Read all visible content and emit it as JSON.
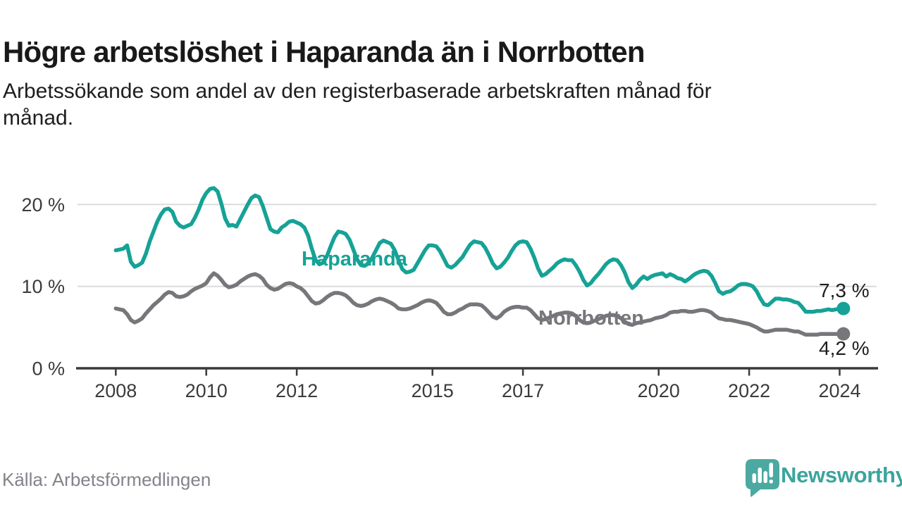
{
  "header": {
    "title": "Högre arbetslöshet i Haparanda än i Norrbotten",
    "subtitle_lines": [
      "Arbetssökande som andel av den registerbaserade arbetskraften månad för",
      "månad."
    ]
  },
  "footer": {
    "source": "Källa: Arbetsförmedlingen",
    "logo_text": "Newsworthy",
    "logo_icon": "speech-bubble-bar-chart-icon"
  },
  "colors": {
    "haparanda": "#16A296",
    "norrbotten": "#76777A",
    "logo_teal": "#4BA9A1",
    "grid": "#DBDBDB",
    "axis": "#3A3A3A",
    "tick_label": "#3B3B3B",
    "value_label": "#1D1D1D"
  },
  "chart_data": {
    "type": "line",
    "title": "Högre arbetslöshet i Haparanda än i Norrbotten",
    "subtitle": "Arbetssökande som andel av den registerbaserade arbetskraften månad för månad.",
    "xlabel": "",
    "ylabel": "",
    "unit": "%",
    "x_start_year": 2008,
    "x_months_per_step": 1,
    "xlim": [
      2007.15,
      2024.85
    ],
    "ylim": [
      0,
      24
    ],
    "grid": "horizontal",
    "legend": "inline-labels",
    "yticks": [
      {
        "value": 0,
        "label": "0 %"
      },
      {
        "value": 10,
        "label": "10 %"
      },
      {
        "value": 20,
        "label": "20 %"
      }
    ],
    "xticks": [
      {
        "value": 2008,
        "label": "2008"
      },
      {
        "value": 2010,
        "label": "2010"
      },
      {
        "value": 2012,
        "label": "2012"
      },
      {
        "value": 2015,
        "label": "2015"
      },
      {
        "value": 2017,
        "label": "2017"
      },
      {
        "value": 2020,
        "label": "2020"
      },
      {
        "value": 2022,
        "label": "2022"
      },
      {
        "value": 2024,
        "label": "2024"
      }
    ],
    "series": [
      {
        "name": "Haparanda",
        "color": "#16A296",
        "end_label": "7,3 %",
        "end_value": 7.3,
        "values": [
          14.4,
          14.5,
          14.6,
          15.0,
          13.0,
          12.4,
          12.6,
          12.9,
          14.0,
          15.5,
          16.7,
          17.9,
          18.8,
          19.4,
          19.5,
          19.1,
          17.9,
          17.4,
          17.2,
          17.4,
          17.6,
          18.4,
          19.4,
          20.6,
          21.4,
          21.9,
          22.0,
          21.6,
          20.1,
          18.3,
          17.4,
          17.5,
          17.3,
          18.2,
          19.1,
          20.0,
          20.8,
          21.1,
          20.9,
          19.8,
          18.4,
          17.0,
          16.7,
          16.6,
          17.2,
          17.5,
          17.9,
          18.0,
          17.8,
          17.6,
          17.2,
          16.2,
          14.6,
          13.2,
          12.7,
          12.9,
          13.7,
          14.9,
          16.0,
          16.7,
          16.6,
          16.4,
          15.7,
          14.5,
          13.3,
          12.6,
          12.5,
          12.8,
          13.5,
          14.4,
          15.3,
          15.6,
          15.4,
          15.2,
          14.4,
          13.2,
          12.1,
          11.7,
          11.8,
          12.0,
          12.8,
          13.6,
          14.4,
          15.0,
          15.0,
          14.9,
          14.3,
          13.4,
          12.5,
          12.3,
          12.6,
          13.1,
          13.6,
          14.4,
          15.1,
          15.5,
          15.4,
          15.3,
          14.7,
          13.8,
          12.8,
          12.2,
          12.4,
          12.9,
          13.5,
          14.3,
          15.0,
          15.4,
          15.5,
          15.4,
          14.6,
          13.5,
          12.2,
          11.3,
          11.5,
          11.9,
          12.3,
          12.8,
          13.1,
          13.3,
          13.2,
          13.2,
          12.6,
          11.8,
          10.8,
          10.1,
          10.4,
          11.0,
          11.5,
          12.1,
          12.7,
          13.1,
          13.3,
          13.2,
          12.6,
          11.7,
          10.5,
          9.8,
          10.2,
          10.8,
          11.2,
          10.9,
          11.2,
          11.4,
          11.5,
          11.6,
          11.2,
          11.5,
          11.3,
          11.0,
          10.9,
          10.6,
          10.9,
          11.3,
          11.6,
          11.8,
          11.9,
          11.8,
          11.3,
          10.4,
          9.4,
          9.1,
          9.3,
          9.4,
          9.7,
          10.1,
          10.3,
          10.3,
          10.2,
          10.0,
          9.4,
          8.5,
          7.8,
          7.7,
          8.1,
          8.5,
          8.5,
          8.4,
          8.4,
          8.3,
          8.1,
          8.0,
          7.5,
          6.9,
          6.9,
          6.9,
          7.0,
          7.0,
          7.1,
          7.2,
          7.1,
          7.2,
          7.2,
          7.3
        ]
      },
      {
        "name": "Norrbotten",
        "color": "#76777A",
        "end_label": "4,2 %",
        "end_value": 4.2,
        "values": [
          7.3,
          7.2,
          7.1,
          6.6,
          5.9,
          5.6,
          5.8,
          6.1,
          6.7,
          7.2,
          7.7,
          8.1,
          8.5,
          9.0,
          9.3,
          9.2,
          8.8,
          8.7,
          8.8,
          9.0,
          9.4,
          9.7,
          9.9,
          10.1,
          10.4,
          11.1,
          11.6,
          11.3,
          10.8,
          10.2,
          9.9,
          10.0,
          10.2,
          10.6,
          10.9,
          11.2,
          11.4,
          11.5,
          11.3,
          10.9,
          10.2,
          9.8,
          9.6,
          9.7,
          10.0,
          10.3,
          10.4,
          10.3,
          10.0,
          9.8,
          9.4,
          8.8,
          8.2,
          7.9,
          8.0,
          8.3,
          8.7,
          9.0,
          9.2,
          9.2,
          9.1,
          8.9,
          8.5,
          8.0,
          7.7,
          7.6,
          7.7,
          7.9,
          8.2,
          8.4,
          8.5,
          8.4,
          8.2,
          8.0,
          7.7,
          7.3,
          7.2,
          7.2,
          7.3,
          7.5,
          7.7,
          8.0,
          8.2,
          8.3,
          8.2,
          8.0,
          7.5,
          6.9,
          6.6,
          6.6,
          6.8,
          7.1,
          7.3,
          7.6,
          7.8,
          7.8,
          7.8,
          7.7,
          7.3,
          6.8,
          6.3,
          6.1,
          6.4,
          6.9,
          7.2,
          7.4,
          7.5,
          7.5,
          7.4,
          7.4,
          7.1,
          6.6,
          6.1,
          5.9,
          6.0,
          6.2,
          6.4,
          6.6,
          6.7,
          6.8,
          6.8,
          6.7,
          6.4,
          5.9,
          5.6,
          5.5,
          5.6,
          5.8,
          6.0,
          6.2,
          6.4,
          6.5,
          6.5,
          6.4,
          6.1,
          5.7,
          5.4,
          5.3,
          5.5,
          5.6,
          5.7,
          5.8,
          5.9,
          6.1,
          6.2,
          6.3,
          6.5,
          6.8,
          6.9,
          6.9,
          7.0,
          7.0,
          6.9,
          6.9,
          7.0,
          7.1,
          7.1,
          7.0,
          6.8,
          6.4,
          6.1,
          6.0,
          5.9,
          5.9,
          5.8,
          5.7,
          5.6,
          5.5,
          5.4,
          5.2,
          5.0,
          4.7,
          4.5,
          4.5,
          4.6,
          4.7,
          4.7,
          4.7,
          4.7,
          4.6,
          4.5,
          4.5,
          4.3,
          4.1,
          4.1,
          4.1,
          4.1,
          4.2,
          4.2,
          4.2,
          4.2,
          4.2,
          4.2,
          4.2
        ]
      }
    ]
  }
}
